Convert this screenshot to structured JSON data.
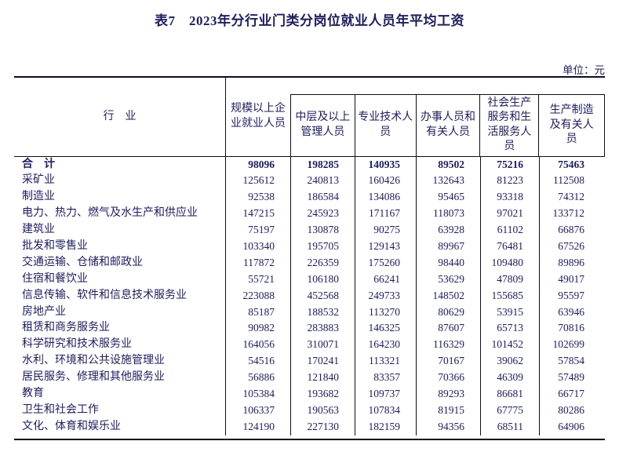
{
  "title": "表7　2023年分行业门类分岗位就业人员年平均工资",
  "unit_label": "单位：元",
  "colors": {
    "text": "#1d1d5f",
    "border": "#0c0c20",
    "background": "#ffffff"
  },
  "table": {
    "row_header": "行　业",
    "col_headers": [
      "规模以上企\n业就业人员",
      "中层及以上\n管理人员",
      "专业技术人\n员",
      "办事人员和\n有关人员",
      "社会生产\n服务和生\n活服务人\n员",
      "生产制造\n及有关人\n员"
    ],
    "rows": [
      {
        "name": "合　计",
        "bold": true,
        "values": [
          "98096",
          "198285",
          "140935",
          "89502",
          "75216",
          "75463"
        ]
      },
      {
        "name": "采矿业",
        "values": [
          "125612",
          "240813",
          "160426",
          "132643",
          "81223",
          "112508"
        ]
      },
      {
        "name": "制造业",
        "values": [
          "92538",
          "186584",
          "134086",
          "95465",
          "93318",
          "74312"
        ]
      },
      {
        "name": "电力、热力、燃气及水生产和供应业",
        "values": [
          "147215",
          "245923",
          "171167",
          "118073",
          "97021",
          "133712"
        ]
      },
      {
        "name": "建筑业",
        "values": [
          "75197",
          "130878",
          "90275",
          "63928",
          "61102",
          "66876"
        ]
      },
      {
        "name": "批发和零售业",
        "values": [
          "103340",
          "195705",
          "129143",
          "89967",
          "76481",
          "67526"
        ]
      },
      {
        "name": "交通运输、仓储和邮政业",
        "values": [
          "117872",
          "226359",
          "175260",
          "98440",
          "109480",
          "89896"
        ]
      },
      {
        "name": "住宿和餐饮业",
        "values": [
          "55721",
          "106180",
          "66241",
          "53629",
          "47809",
          "49017"
        ]
      },
      {
        "name": "信息传输、软件和信息技术服务业",
        "values": [
          "223088",
          "452568",
          "249733",
          "148502",
          "155685",
          "95597"
        ]
      },
      {
        "name": "房地产业",
        "values": [
          "85187",
          "188532",
          "113270",
          "80629",
          "53915",
          "63946"
        ]
      },
      {
        "name": "租赁和商务服务业",
        "values": [
          "90982",
          "283883",
          "146325",
          "87607",
          "65713",
          "70816"
        ]
      },
      {
        "name": "科学研究和技术服务业",
        "values": [
          "164056",
          "310071",
          "164230",
          "116329",
          "101452",
          "102699"
        ]
      },
      {
        "name": "水利、环境和公共设施管理业",
        "values": [
          "54516",
          "170241",
          "113321",
          "70167",
          "39062",
          "57854"
        ]
      },
      {
        "name": "居民服务、修理和其他服务业",
        "values": [
          "56886",
          "121840",
          "83357",
          "70366",
          "46309",
          "57489"
        ]
      },
      {
        "name": "教育",
        "values": [
          "105384",
          "193682",
          "109737",
          "89293",
          "86681",
          "66717"
        ]
      },
      {
        "name": "卫生和社会工作",
        "values": [
          "106337",
          "190563",
          "107834",
          "81915",
          "67775",
          "80286"
        ]
      },
      {
        "name": "文化、体育和娱乐业",
        "values": [
          "124190",
          "227130",
          "182159",
          "94356",
          "68511",
          "64906"
        ]
      }
    ]
  }
}
